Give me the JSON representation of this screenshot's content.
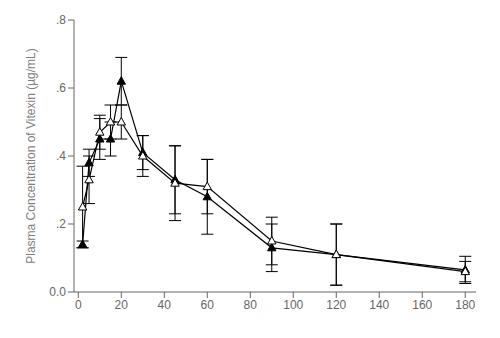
{
  "chart_data": {
    "type": "line",
    "y_label": "Plasma Concentration of Vitexin (µg/mL)",
    "x": [
      2,
      5,
      10,
      15,
      20,
      30,
      45,
      60,
      90,
      120,
      180
    ],
    "series": [
      {
        "color": "#000000",
        "marker": "triangle",
        "line_style": "solid",
        "values": [
          0.14,
          0.38,
          0.45,
          0.45,
          0.62,
          0.41,
          0.33,
          0.28,
          0.13,
          0.11,
          0.065
        ],
        "errors": [
          0.01,
          0.04,
          0.06,
          0.05,
          0.07,
          0.05,
          0.1,
          0.11,
          0.07,
          0.09,
          0.04
        ]
      },
      {
        "color": "#000000",
        "marker": "open_triangle",
        "line_style": "solid",
        "values": [
          0.25,
          0.33,
          0.47,
          0.5,
          0.5,
          0.4,
          0.32,
          0.31,
          0.15,
          0.11,
          0.06
        ],
        "errors": [
          0.12,
          0.07,
          0.05,
          0.05,
          0.05,
          0.06,
          0.11,
          0.08,
          0.07,
          0.09,
          0.03
        ]
      }
    ],
    "xlim": [
      -2,
      185
    ],
    "ylim": [
      0.0,
      0.8
    ],
    "xticks": [
      0,
      20,
      40,
      60,
      80,
      100,
      120,
      140,
      160,
      180
    ],
    "yticks": [
      {
        "value": 0.0,
        "label": "0.0"
      },
      {
        "value": 0.2,
        "label": ".2"
      },
      {
        "value": 0.4,
        "label": ".4"
      },
      {
        "value": 0.6,
        "label": ".6"
      },
      {
        "value": 0.8,
        "label": ".8"
      }
    ],
    "grid": false
  }
}
